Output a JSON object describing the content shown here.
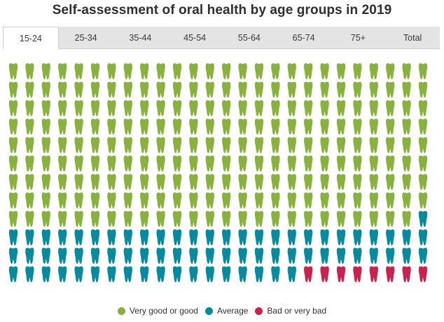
{
  "title": "Self-assessment of oral health by age groups in 2019",
  "tabs": [
    "15-24",
    "25-34",
    "35-44",
    "45-54",
    "55-64",
    "65-74",
    "75+",
    "Total"
  ],
  "active_tab": "15-24",
  "colors": {
    "very_good": "#88b13e",
    "average": "#078a9e",
    "bad": "#c8234f"
  },
  "chart_data": {
    "type": "waffle",
    "title": "Self-assessment of oral health by age groups in 2019",
    "category": "15-24",
    "total_icons": 312,
    "grid": {
      "rows": 12,
      "columns": 26
    },
    "icon": "tooth-icon",
    "series": [
      {
        "name": "Very good or good",
        "count": 233,
        "color": "#88b13e"
      },
      {
        "name": "Average",
        "count": 71,
        "color": "#078a9e"
      },
      {
        "name": "Bad or very bad",
        "count": 8,
        "color": "#c8234f"
      }
    ]
  },
  "legend": [
    {
      "label": "Very good or good",
      "color": "#88b13e"
    },
    {
      "label": "Average",
      "color": "#078a9e"
    },
    {
      "label": "Bad or very bad",
      "color": "#c8234f"
    }
  ]
}
